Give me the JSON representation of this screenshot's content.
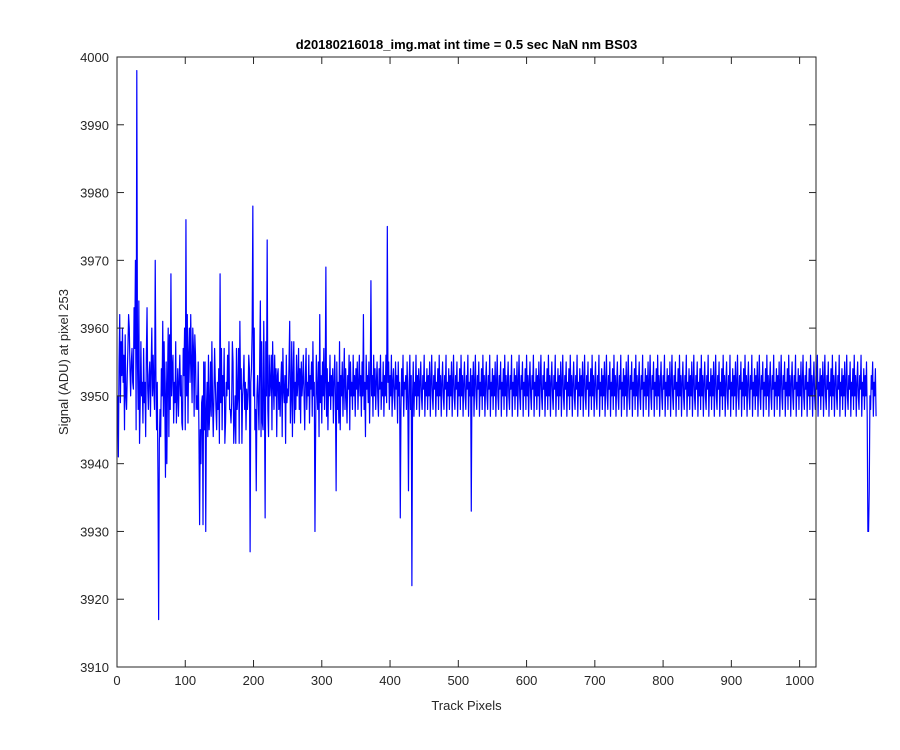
{
  "chart_data": {
    "type": "line",
    "title": "d20180216018_img.mat int time = 0.5 sec  NaN nm BS03",
    "xlabel": "Track Pixels",
    "ylabel": "Signal (ADU) at pixel 253",
    "xlim": [
      0,
      1024
    ],
    "ylim": [
      3910,
      4000
    ],
    "xticks": [
      0,
      100,
      200,
      300,
      400,
      500,
      600,
      700,
      800,
      900,
      1000
    ],
    "yticks": [
      3910,
      3920,
      3930,
      3940,
      3950,
      3960,
      3970,
      3980,
      3990,
      4000
    ],
    "grid": false,
    "legend": "none",
    "series": [
      {
        "color": "#0000ff",
        "x_start": 1,
        "x_step": 1,
        "y": [
          3950,
          3941,
          3955,
          3962,
          3949,
          3958,
          3953,
          3960,
          3952,
          3956,
          3945,
          3959,
          3950,
          3948,
          3953,
          3957,
          3962,
          3960,
          3954,
          3950,
          3955,
          3957,
          3952,
          3951,
          3963,
          3957,
          3970,
          3945,
          3998,
          3955,
          3948,
          3964,
          3943,
          3949,
          3958,
          3950,
          3952,
          3946,
          3957,
          3949,
          3952,
          3944,
          3956,
          3963,
          3951,
          3948,
          3953,
          3955,
          3947,
          3954,
          3960,
          3950,
          3956,
          3951,
          3948,
          3970,
          3953,
          3945,
          3952,
          3938,
          3917,
          3943,
          3948,
          3944,
          3954,
          3950,
          3961,
          3947,
          3958,
          3950,
          3938,
          3955,
          3940,
          3952,
          3960,
          3944,
          3959,
          3948,
          3968,
          3950,
          3954,
          3956,
          3946,
          3952,
          3949,
          3958,
          3946,
          3950,
          3954,
          3947,
          3952,
          3956,
          3950,
          3953,
          3946,
          3945,
          3957,
          3953,
          3960,
          3945,
          3976,
          3950,
          3962,
          3946,
          3956,
          3960,
          3952,
          3962,
          3955,
          3949,
          3960,
          3957,
          3947,
          3959,
          3956,
          3948,
          3950,
          3948,
          3955,
          3945,
          3931,
          3945,
          3940,
          3949,
          3950,
          3931,
          3955,
          3945,
          3955,
          3930,
          3948,
          3952,
          3944,
          3956,
          3945,
          3948,
          3955,
          3947,
          3958,
          3949,
          3944,
          3950,
          3957,
          3952,
          3948,
          3945,
          3952,
          3948,
          3954,
          3943,
          3968,
          3949,
          3957,
          3945,
          3953,
          3950,
          3957,
          3943,
          3946,
          3952,
          3950,
          3956,
          3951,
          3958,
          3948,
          3948,
          3946,
          3949,
          3958,
          3955,
          3943,
          3946,
          3950,
          3943,
          3957,
          3948,
          3950,
          3957,
          3943,
          3961,
          3951,
          3954,
          3943,
          3950,
          3952,
          3956,
          3948,
          3952,
          3945,
          3951,
          3948,
          3950,
          3956,
          3954,
          3927,
          3952,
          3954,
          3960,
          3978,
          3950,
          3960,
          3945,
          3948,
          3936,
          3950,
          3953,
          3949,
          3945,
          3955,
          3964,
          3944,
          3958,
          3946,
          3945,
          3961,
          3950,
          3932,
          3958,
          3950,
          3973,
          3948,
          3944,
          3956,
          3950,
          3952,
          3956,
          3945,
          3958,
          3952,
          3948,
          3956,
          3950,
          3954,
          3944,
          3953,
          3954,
          3948,
          3952,
          3947,
          3952,
          3955,
          3944,
          3957,
          3951,
          3949,
          3953,
          3943,
          3956,
          3949,
          3951,
          3950,
          3955,
          3961,
          3946,
          3950,
          3958,
          3944,
          3953,
          3958,
          3946,
          3952,
          3948,
          3956,
          3950,
          3952,
          3957,
          3948,
          3954,
          3946,
          3955,
          3950,
          3952,
          3956,
          3950,
          3945,
          3953,
          3957,
          3948,
          3952,
          3950,
          3956,
          3946,
          3953,
          3951,
          3955,
          3947,
          3958,
          3950,
          3952,
          3930,
          3945,
          3956,
          3951,
          3948,
          3955,
          3944,
          3962,
          3949,
          3953,
          3946,
          3955,
          3950,
          3957,
          3948,
          3952,
          3969,
          3947,
          3954,
          3945,
          3952,
          3950,
          3956,
          3948,
          3953,
          3950,
          3954,
          3946,
          3952,
          3956,
          3950,
          3936,
          3955,
          3948,
          3952,
          3946,
          3958,
          3945,
          3953,
          3950,
          3955,
          3947,
          3952,
          3957,
          3948,
          3954,
          3950,
          3946,
          3953,
          3951,
          3956,
          3945,
          3955,
          3950,
          3952,
          3948,
          3956,
          3950,
          3953,
          3947,
          3954,
          3951,
          3955,
          3948,
          3952,
          3956,
          3950,
          3953,
          3947,
          3955,
          3950,
          3962,
          3948,
          3952,
          3944,
          3956,
          3951,
          3953,
          3949,
          3955,
          3946,
          3952,
          3967,
          3950,
          3953,
          3947,
          3956,
          3950,
          3954,
          3948,
          3952,
          3955,
          3950,
          3947,
          3954,
          3951,
          3956,
          3948,
          3952,
          3950,
          3955,
          3947,
          3953,
          3950,
          3956,
          3949,
          3975,
          3952,
          3955,
          3948,
          3953,
          3950,
          3956,
          3947,
          3952,
          3954,
          3950,
          3948,
          3955,
          3951,
          3953,
          3946,
          3955,
          3950,
          3952,
          3932,
          3948,
          3954,
          3950,
          3956,
          3947,
          3952,
          3951,
          3953,
          3948,
          3955,
          3950,
          3936,
          3952,
          3956,
          3948,
          3953,
          3922,
          3950,
          3955,
          3947,
          3952,
          3950,
          3956,
          3948,
          3953,
          3950,
          3954,
          3947,
          3952,
          3955,
          3950,
          3948,
          3953,
          3951,
          3956,
          3947,
          3952,
          3950,
          3954,
          3948,
          3953,
          3950,
          3955,
          3947,
          3952,
          3956,
          3950,
          3948,
          3953,
          3951,
          3955,
          3947,
          3952,
          3950,
          3954,
          3948,
          3956,
          3950,
          3953,
          3947,
          3952,
          3955,
          3950,
          3948,
          3953,
          3951,
          3956,
          3947,
          3952,
          3950,
          3954,
          3948,
          3953,
          3950,
          3955,
          3947,
          3952,
          3956,
          3950,
          3948,
          3953,
          3951,
          3955,
          3947,
          3952,
          3950,
          3954,
          3948,
          3956,
          3950,
          3953,
          3947,
          3952,
          3955,
          3950,
          3948,
          3953,
          3951,
          3956,
          3947,
          3952,
          3950,
          3954,
          3933,
          3953,
          3950,
          3955,
          3947,
          3952,
          3956,
          3950,
          3948,
          3953,
          3951,
          3955,
          3947,
          3952,
          3950,
          3954,
          3948,
          3956,
          3950,
          3953,
          3947,
          3952,
          3955,
          3950,
          3948,
          3953,
          3951,
          3956,
          3947,
          3952,
          3950,
          3954,
          3948,
          3953,
          3950,
          3955,
          3947,
          3952,
          3956,
          3950,
          3948,
          3953,
          3951,
          3955,
          3947,
          3952,
          3950,
          3954,
          3948,
          3956,
          3950,
          3953,
          3947,
          3952,
          3955,
          3950,
          3948,
          3953,
          3951,
          3956,
          3947,
          3952,
          3950,
          3954,
          3948,
          3953,
          3950,
          3955,
          3947,
          3952,
          3956,
          3950,
          3948,
          3953,
          3951,
          3955,
          3947,
          3952,
          3950,
          3954,
          3948,
          3956,
          3950,
          3953,
          3947,
          3952,
          3955,
          3950,
          3948,
          3953,
          3951,
          3956,
          3947,
          3952,
          3950,
          3954,
          3948,
          3953,
          3950,
          3955,
          3947,
          3952,
          3956,
          3950,
          3948,
          3953,
          3951,
          3955,
          3947,
          3952,
          3950,
          3954,
          3948,
          3956,
          3950,
          3953,
          3947,
          3952,
          3955,
          3950,
          3948,
          3953,
          3951,
          3956,
          3947,
          3952,
          3950,
          3954,
          3948,
          3953,
          3950,
          3955,
          3947,
          3952,
          3956,
          3950,
          3948,
          3953,
          3951,
          3955,
          3947,
          3952,
          3950,
          3954,
          3948,
          3956,
          3950,
          3953,
          3947,
          3952,
          3955,
          3950,
          3948,
          3953,
          3951,
          3956,
          3947,
          3952,
          3950,
          3954,
          3948,
          3953,
          3950,
          3955,
          3947,
          3952,
          3956,
          3950,
          3948,
          3953,
          3951,
          3955,
          3947,
          3952,
          3950,
          3954,
          3948,
          3956,
          3950,
          3953,
          3947,
          3952,
          3955,
          3950,
          3948,
          3953,
          3951,
          3956,
          3947,
          3952,
          3950,
          3954,
          3948,
          3953,
          3950,
          3955,
          3947,
          3952,
          3956,
          3950,
          3948,
          3953,
          3951,
          3955,
          3947,
          3952,
          3950,
          3954,
          3948,
          3956,
          3950,
          3953,
          3947,
          3952,
          3955,
          3950,
          3948,
          3953,
          3951,
          3956,
          3947,
          3952,
          3950,
          3954,
          3948,
          3953,
          3950,
          3955,
          3947,
          3952,
          3956,
          3950,
          3948,
          3953,
          3951,
          3955,
          3947,
          3952,
          3950,
          3954,
          3948,
          3956,
          3950,
          3953,
          3947,
          3952,
          3955,
          3950,
          3948,
          3953,
          3951,
          3956,
          3947,
          3952,
          3950,
          3954,
          3948,
          3953,
          3950,
          3955,
          3947,
          3952,
          3956,
          3950,
          3948,
          3953,
          3951,
          3955,
          3947,
          3952,
          3950,
          3954,
          3948,
          3956,
          3950,
          3953,
          3947,
          3952,
          3955,
          3950,
          3948,
          3953,
          3951,
          3956,
          3947,
          3952,
          3950,
          3954,
          3948,
          3953,
          3950,
          3955,
          3947,
          3952,
          3956,
          3950,
          3948,
          3953,
          3951,
          3955,
          3947,
          3952,
          3950,
          3954,
          3948,
          3956,
          3950,
          3953,
          3947,
          3952,
          3955,
          3950,
          3948,
          3953,
          3951,
          3956,
          3947,
          3952,
          3950,
          3954,
          3948,
          3953,
          3950,
          3955,
          3947,
          3952,
          3956,
          3950,
          3948,
          3953,
          3951,
          3955,
          3947,
          3952,
          3950,
          3954,
          3948,
          3956,
          3950,
          3953,
          3947,
          3952,
          3955,
          3950,
          3948,
          3953,
          3951,
          3956,
          3947,
          3952,
          3950,
          3954,
          3948,
          3953,
          3950,
          3955,
          3947,
          3952,
          3956,
          3950,
          3948,
          3953,
          3951,
          3955,
          3947,
          3952,
          3950,
          3954,
          3948,
          3956,
          3950,
          3953,
          3947,
          3952,
          3955,
          3950,
          3948,
          3953,
          3951,
          3956,
          3947,
          3952,
          3950,
          3954,
          3948,
          3953,
          3950,
          3955,
          3947,
          3952,
          3956,
          3950,
          3948,
          3953,
          3951,
          3955,
          3947,
          3952,
          3950,
          3954,
          3948,
          3956,
          3950,
          3953,
          3947,
          3952,
          3955,
          3950,
          3948,
          3953,
          3951,
          3956,
          3947,
          3952,
          3950,
          3954,
          3948,
          3953,
          3950,
          3955,
          3947,
          3952,
          3956,
          3950,
          3948,
          3953,
          3951,
          3955,
          3947,
          3952,
          3950,
          3954,
          3948,
          3956,
          3950,
          3953,
          3947,
          3952,
          3955,
          3950,
          3948,
          3953,
          3951,
          3956,
          3947,
          3952,
          3950,
          3954,
          3948,
          3953,
          3950,
          3955,
          3947,
          3952,
          3956,
          3950,
          3948,
          3953,
          3951,
          3955,
          3947,
          3952,
          3950,
          3954,
          3948,
          3956,
          3950,
          3953,
          3947,
          3952,
          3955,
          3950,
          3948,
          3953,
          3951,
          3956,
          3947,
          3952,
          3950,
          3954,
          3948,
          3953,
          3950,
          3955,
          3947,
          3952,
          3956,
          3950,
          3948,
          3953,
          3951,
          3955,
          3947,
          3952,
          3950,
          3954,
          3948,
          3956,
          3950,
          3953,
          3947,
          3952,
          3955,
          3950,
          3948,
          3953,
          3951,
          3956,
          3947,
          3952,
          3950,
          3954,
          3948,
          3953,
          3950,
          3955,
          3947,
          3952,
          3956,
          3950,
          3948,
          3953,
          3951,
          3955,
          3947,
          3952,
          3950,
          3954,
          3948,
          3956,
          3950,
          3953,
          3947,
          3952,
          3955,
          3950,
          3948,
          3953,
          3951,
          3956,
          3947,
          3952,
          3950,
          3954,
          3948,
          3953,
          3950,
          3955,
          3947,
          3952,
          3956,
          3950,
          3948,
          3953,
          3951,
          3955,
          3947,
          3952,
          3950,
          3954,
          3948,
          3956,
          3950,
          3953,
          3947,
          3952,
          3955,
          3950,
          3948,
          3953,
          3951,
          3956,
          3947,
          3952,
          3950,
          3954,
          3948,
          3953,
          3950,
          3955,
          3947,
          3930,
          3930,
          3936,
          3950,
          3948,
          3953,
          3951,
          3955,
          3947,
          3952,
          3950,
          3954,
          3947
        ]
      }
    ]
  }
}
